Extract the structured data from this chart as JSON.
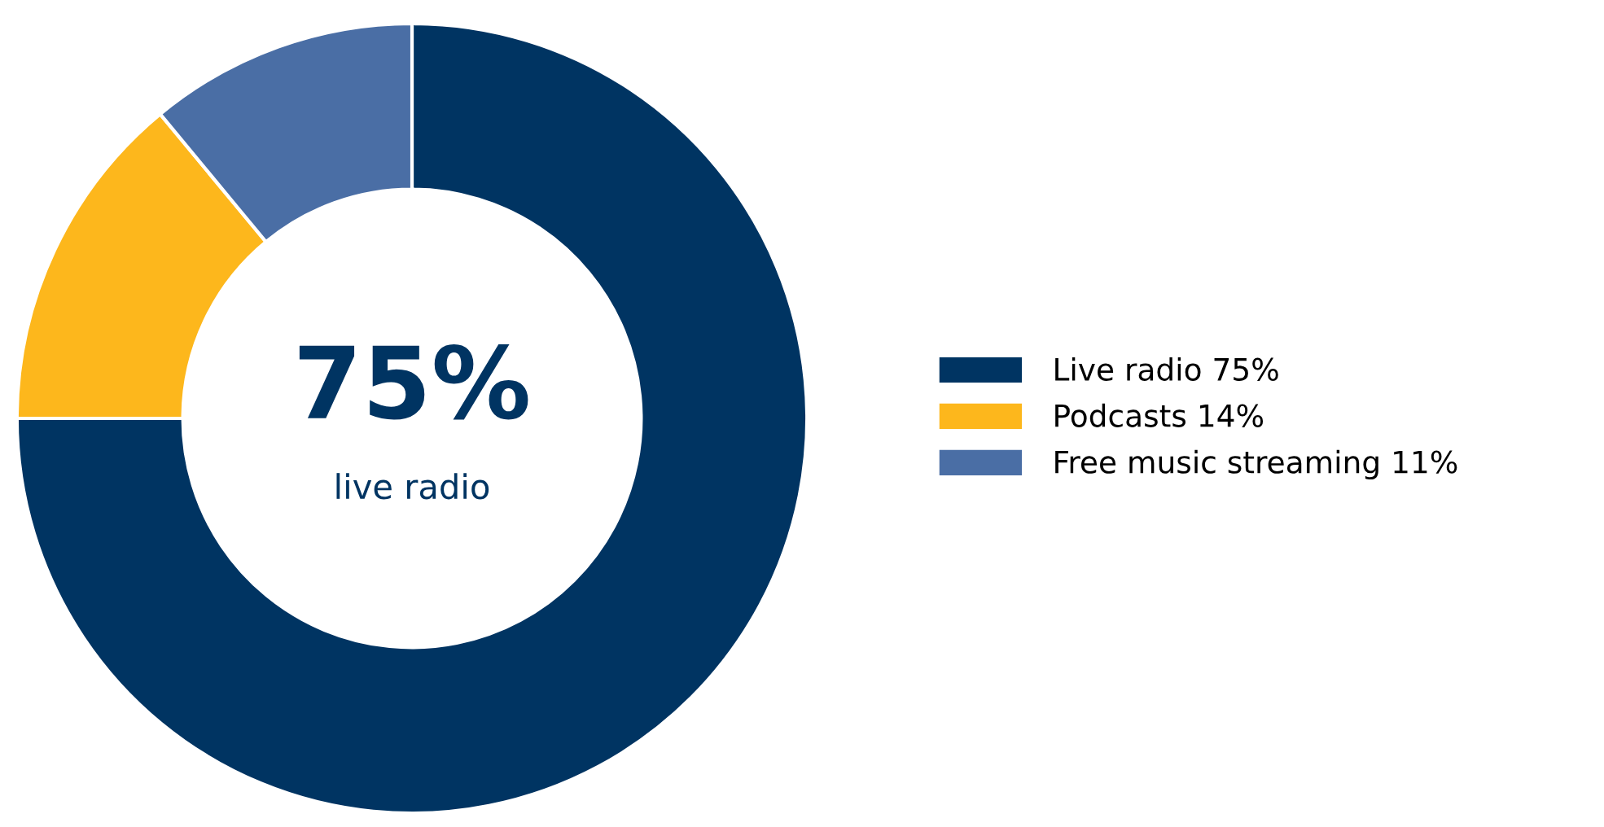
{
  "chart_data": {
    "type": "donut",
    "categories": [
      "Live radio",
      "Podcasts",
      "Free music streaming"
    ],
    "values": [
      75,
      14,
      11
    ],
    "value_labels": [
      "75%",
      "14%",
      "11%"
    ],
    "colors": [
      "#003462",
      "#fdb71c",
      "#4a6ea5"
    ],
    "annotations": [
      "75%",
      "live radio"
    ],
    "legend": "right"
  }
}
